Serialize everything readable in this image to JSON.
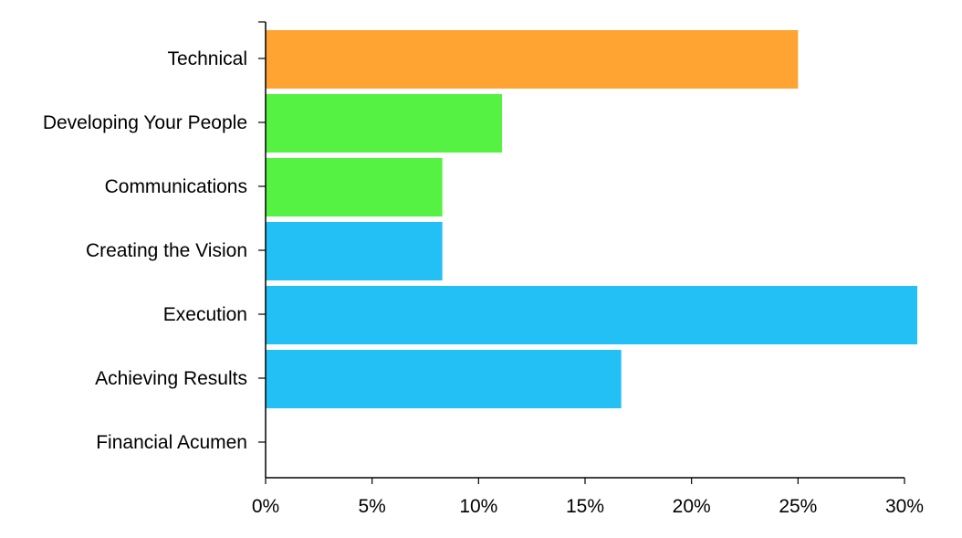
{
  "chart_data": {
    "type": "bar",
    "orientation": "horizontal",
    "categories": [
      "Technical",
      "Developing Your People",
      "Communications",
      "Creating the Vision",
      "Execution",
      "Achieving Results",
      "Financial Acumen"
    ],
    "values": [
      25.0,
      11.1,
      8.3,
      8.3,
      30.6,
      16.7,
      0
    ],
    "bar_colors": [
      "#ffa333",
      "#55f244",
      "#55f244",
      "#22c0f5",
      "#22c0f5",
      "#22c0f5",
      "#22c0f5"
    ],
    "xlim": [
      0,
      30
    ],
    "x_ticks": [
      0,
      5,
      10,
      15,
      20,
      25,
      30
    ],
    "x_tick_labels": [
      "0%",
      "5%",
      "10%",
      "15%",
      "20%",
      "25%",
      "30%"
    ],
    "title": "",
    "xlabel": "",
    "ylabel": "",
    "grid": false,
    "legend": "none"
  }
}
